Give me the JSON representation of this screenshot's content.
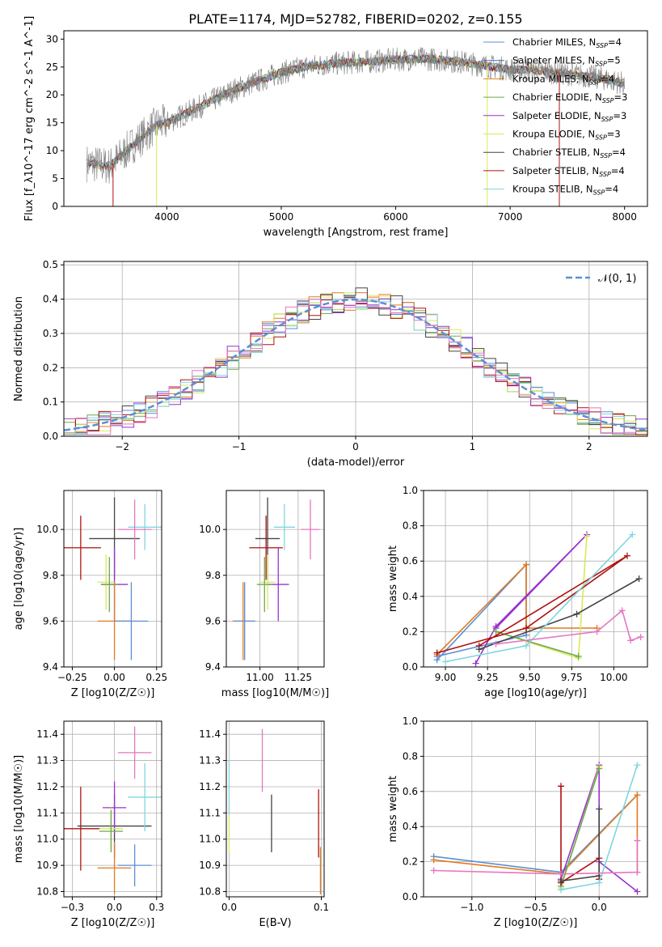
{
  "title": "PLATE=1174, MJD=52782, FIBERID=0202, z=0.155",
  "colors": {
    "chabrier_miles": "#5b8fd6",
    "salpeter_miles": "#3a6fb5",
    "kroupa_miles": "#e07b20",
    "chabrier_elodie": "#6aa84f",
    "salpeter_elodie": "#9933cc",
    "kroupa_elodie": "#d9e85a",
    "chabrier_stelib": "#444444",
    "salpeter_stelib": "#b01010",
    "kroupa_stelib": "#7fd6de",
    "pink": "#e377c2",
    "gauss": "#5b8fd6",
    "data": "#808080"
  },
  "chart_data": [
    {
      "type": "line",
      "name": "spectrum",
      "xlabel": "wavelength [Angstrom, rest frame]",
      "ylabel": "Flux [f_λ10^-17 erg cm^-2 s^-1 A^-1]",
      "xlim": [
        3100,
        8200
      ],
      "ylim": [
        0,
        31.5
      ],
      "xticks": [
        4000,
        5000,
        6000,
        7000,
        8000
      ],
      "yticks": [
        0,
        5,
        10,
        15,
        20,
        25,
        30
      ],
      "legend": [
        {
          "label": "Chabrier MILES, N_SSP=4",
          "color": "chabrier_miles"
        },
        {
          "label": "Salpeter MILES, N_SSP=5",
          "color": "salpeter_miles"
        },
        {
          "label": "Kroupa MILES, N_SSP=4",
          "color": "kroupa_miles"
        },
        {
          "label": "Chabrier ELODIE, N_SSP=3",
          "color": "chabrier_elodie"
        },
        {
          "label": "Salpeter ELODIE, N_SSP=3",
          "color": "salpeter_elodie"
        },
        {
          "label": "Kroupa ELODIE, N_SSP=3",
          "color": "kroupa_elodie"
        },
        {
          "label": "Chabrier STELIB, N_SSP=4",
          "color": "chabrier_stelib"
        },
        {
          "label": "Salpeter STELIB, N_SSP=4",
          "color": "salpeter_stelib"
        },
        {
          "label": "Kroupa STELIB, N_SSP=4",
          "color": "kroupa_stelib"
        }
      ],
      "continuum": [
        [
          3300,
          7.8
        ],
        [
          3500,
          7.2
        ],
        [
          3700,
          11
        ],
        [
          3900,
          14.5
        ],
        [
          4000,
          15
        ],
        [
          4200,
          17
        ],
        [
          4400,
          19
        ],
        [
          4600,
          21
        ],
        [
          4800,
          22.5
        ],
        [
          5000,
          24
        ],
        [
          5200,
          25
        ],
        [
          5400,
          25.5
        ],
        [
          5600,
          25.8
        ],
        [
          5800,
          26
        ],
        [
          6000,
          26.3
        ],
        [
          6200,
          26.5
        ],
        [
          6400,
          26.3
        ],
        [
          6600,
          25.8
        ],
        [
          6800,
          25.2
        ],
        [
          7000,
          24.5
        ],
        [
          7200,
          24.5
        ],
        [
          7400,
          24
        ],
        [
          7600,
          23.5
        ],
        [
          7800,
          23
        ],
        [
          8000,
          22
        ]
      ]
    },
    {
      "type": "line",
      "name": "residuals",
      "xlabel": "(data-model)/error",
      "ylabel": "Normed distribution",
      "xlim": [
        -2.5,
        2.5
      ],
      "ylim": [
        0,
        0.51
      ],
      "xticks": [
        -2,
        -1,
        0,
        1,
        2
      ],
      "yticks": [
        0.0,
        0.1,
        0.2,
        0.3,
        0.4,
        0.5
      ],
      "legend": [
        {
          "label": "𝒩(0, 1)",
          "color": "gauss"
        }
      ]
    },
    {
      "type": "scatter",
      "name": "age-vs-Z",
      "xlabel": "Z [log10(Z/Z☉)]",
      "ylabel": "age [log10(age/yr)]",
      "xlim": [
        -0.3,
        0.28
      ],
      "ylim": [
        9.4,
        10.17
      ],
      "xticks": [
        -0.25,
        0.0,
        0.25
      ],
      "yticks": [
        9.4,
        9.6,
        9.8,
        10.0
      ],
      "points": [
        {
          "x": -0.2,
          "y": 9.92,
          "xerr": 0.12,
          "yerr": 0.14,
          "color": "salpeter_stelib"
        },
        {
          "x": 0.0,
          "y": 9.96,
          "xerr": 0.15,
          "yerr": 0.18,
          "color": "chabrier_stelib"
        },
        {
          "x": 0.18,
          "y": 10.01,
          "xerr": 0.1,
          "yerr": 0.1,
          "color": "kroupa_stelib"
        },
        {
          "x": 0.12,
          "y": 10.0,
          "xerr": 0.1,
          "yerr": 0.13,
          "color": "pink"
        },
        {
          "x": 0.0,
          "y": 9.76,
          "xerr": 0.08,
          "yerr": 0.16,
          "color": "salpeter_elodie"
        },
        {
          "x": -0.05,
          "y": 9.77,
          "xerr": 0.05,
          "yerr": 0.12,
          "color": "kroupa_elodie"
        },
        {
          "x": -0.03,
          "y": 9.76,
          "xerr": 0.05,
          "yerr": 0.12,
          "color": "chabrier_elodie"
        },
        {
          "x": 0.0,
          "y": 9.6,
          "xerr": 0.1,
          "yerr": 0.17,
          "color": "kroupa_miles"
        },
        {
          "x": 0.1,
          "y": 9.6,
          "xerr": 0.1,
          "yerr": 0.17,
          "color": "chabrier_miles"
        }
      ]
    },
    {
      "type": "scatter",
      "name": "age-vs-mass",
      "xlabel": "mass [log10(M/M☉)]",
      "ylabel": "",
      "xlim": [
        10.78,
        11.42
      ],
      "ylim": [
        9.4,
        10.17
      ],
      "xticks": [
        11.0,
        11.25
      ],
      "yticks": [
        9.4,
        9.6,
        9.8,
        10.0
      ],
      "points": [
        {
          "x": 11.04,
          "y": 9.92,
          "xerr": 0.11,
          "yerr": 0.14,
          "color": "salpeter_stelib"
        },
        {
          "x": 11.05,
          "y": 9.96,
          "xerr": 0.08,
          "yerr": 0.18,
          "color": "chabrier_stelib"
        },
        {
          "x": 11.16,
          "y": 10.01,
          "xerr": 0.07,
          "yerr": 0.1,
          "color": "kroupa_stelib"
        },
        {
          "x": 11.33,
          "y": 10.0,
          "xerr": 0.06,
          "yerr": 0.13,
          "color": "pink"
        },
        {
          "x": 11.12,
          "y": 9.76,
          "xerr": 0.07,
          "yerr": 0.16,
          "color": "salpeter_elodie"
        },
        {
          "x": 11.05,
          "y": 9.77,
          "xerr": 0.05,
          "yerr": 0.12,
          "color": "kroupa_elodie"
        },
        {
          "x": 11.03,
          "y": 9.76,
          "xerr": 0.05,
          "yerr": 0.12,
          "color": "chabrier_elodie"
        },
        {
          "x": 10.89,
          "y": 9.6,
          "xerr": 0.07,
          "yerr": 0.17,
          "color": "kroupa_miles"
        },
        {
          "x": 10.9,
          "y": 9.6,
          "xerr": 0.07,
          "yerr": 0.17,
          "color": "chabrier_miles"
        }
      ]
    },
    {
      "type": "line",
      "name": "mass-weight-vs-age",
      "xlabel": "age [log10(age/yr)]",
      "ylabel": "mass weight",
      "xlim": [
        8.87,
        10.2
      ],
      "ylim": [
        0,
        1.0
      ],
      "xticks": [
        9.0,
        9.25,
        9.5,
        9.75,
        10.0
      ],
      "yticks": [
        0.0,
        0.2,
        0.4,
        0.6,
        0.8,
        1.0
      ],
      "series": [
        {
          "color": "chabrier_miles",
          "points": [
            [
              8.95,
              0.04
            ],
            [
              9.48,
              0.58
            ],
            [
              9.48,
              0.18
            ],
            [
              8.95,
              0.06
            ]
          ]
        },
        {
          "color": "kroupa_miles",
          "points": [
            [
              8.95,
              0.07
            ],
            [
              9.48,
              0.58
            ],
            [
              9.48,
              0.22
            ],
            [
              9.9,
              0.22
            ]
          ]
        },
        {
          "color": "salpeter_elodie",
          "points": [
            [
              9.18,
              0.02
            ],
            [
              9.3,
              0.23
            ],
            [
              9.84,
              0.75
            ],
            [
              9.3,
              0.22
            ]
          ]
        },
        {
          "color": "kroupa_elodie",
          "points": [
            [
              9.3,
              0.2
            ],
            [
              9.79,
              0.05
            ],
            [
              9.84,
              0.74
            ]
          ]
        },
        {
          "color": "chabrier_elodie",
          "points": [
            [
              9.3,
              0.2
            ],
            [
              9.79,
              0.06
            ]
          ]
        },
        {
          "color": "salpeter_stelib",
          "points": [
            [
              8.95,
              0.08
            ],
            [
              9.48,
              0.22
            ],
            [
              10.08,
              0.63
            ],
            [
              9.2,
              0.12
            ]
          ]
        },
        {
          "color": "chabrier_stelib",
          "points": [
            [
              9.2,
              0.1
            ],
            [
              9.78,
              0.3
            ],
            [
              10.15,
              0.5
            ]
          ]
        },
        {
          "color": "kroupa_stelib",
          "points": [
            [
              9.0,
              0.03
            ],
            [
              9.48,
              0.12
            ],
            [
              10.11,
              0.75
            ]
          ]
        },
        {
          "color": "pink",
          "points": [
            [
              9.3,
              0.13
            ],
            [
              9.9,
              0.2
            ],
            [
              10.05,
              0.32
            ],
            [
              10.1,
              0.15
            ],
            [
              10.16,
              0.17
            ]
          ]
        }
      ]
    },
    {
      "type": "scatter",
      "name": "mass-vs-Z",
      "xlabel": "Z [log10(Z/Z☉)]",
      "ylabel": "mass [log10(M/M☉)]",
      "xlim": [
        -0.3,
        0.28
      ],
      "ylim": [
        10.78,
        11.45
      ],
      "xticks": [
        -0.25,
        0.0,
        0.25
      ],
      "yticks": [
        10.8,
        10.9,
        11.0,
        11.1,
        11.2,
        11.3,
        11.4
      ],
      "points": [
        {
          "x": -0.2,
          "y": 11.04,
          "xerr": 0.12,
          "yerr": 0.16,
          "color": "salpeter_stelib"
        },
        {
          "x": 0.0,
          "y": 11.05,
          "xerr": 0.22,
          "yerr": 0.12,
          "color": "chabrier_stelib"
        },
        {
          "x": 0.18,
          "y": 11.16,
          "xerr": 0.1,
          "yerr": 0.13,
          "color": "kroupa_stelib"
        },
        {
          "x": 0.12,
          "y": 11.33,
          "xerr": 0.1,
          "yerr": 0.1,
          "color": "pink"
        },
        {
          "x": 0.0,
          "y": 11.12,
          "xerr": 0.07,
          "yerr": 0.1,
          "color": "salpeter_elodie"
        },
        {
          "x": -0.02,
          "y": 11.04,
          "xerr": 0.07,
          "yerr": 0.08,
          "color": "kroupa_elodie"
        },
        {
          "x": -0.02,
          "y": 11.03,
          "xerr": 0.07,
          "yerr": 0.08,
          "color": "chabrier_elodie"
        },
        {
          "x": 0.0,
          "y": 10.89,
          "xerr": 0.1,
          "yerr": 0.1,
          "color": "kroupa_miles"
        },
        {
          "x": 0.12,
          "y": 10.9,
          "xerr": 0.1,
          "yerr": 0.08,
          "color": "chabrier_miles"
        }
      ]
    },
    {
      "type": "scatter",
      "name": "mass-vs-ebv",
      "xlabel": "E(B-V)",
      "ylabel": "",
      "xlim": [
        -0.003,
        0.103
      ],
      "ylim": [
        10.78,
        11.45
      ],
      "xticks": [
        0.0,
        0.1
      ],
      "yticks": [
        10.8,
        10.9,
        11.0,
        11.1,
        11.2,
        11.3,
        11.4
      ],
      "points": [
        {
          "x": 0.0,
          "y": 11.2,
          "yerr": 0.1,
          "color": "kroupa_stelib"
        },
        {
          "x": 0.0,
          "y": 11.02,
          "yerr": 0.07,
          "color": "kroupa_elodie"
        },
        {
          "x": 0.036,
          "y": 11.3,
          "yerr": 0.12,
          "color": "pink"
        },
        {
          "x": 0.046,
          "y": 11.06,
          "yerr": 0.11,
          "color": "chabrier_stelib"
        },
        {
          "x": 0.097,
          "y": 11.06,
          "yerr": 0.13,
          "color": "salpeter_stelib"
        },
        {
          "x": 0.099,
          "y": 10.88,
          "yerr": 0.09,
          "color": "kroupa_miles"
        }
      ]
    },
    {
      "type": "line",
      "name": "mass-weight-vs-Z",
      "xlabel": "Z [log10(Z/Z☉)]",
      "ylabel": "mass weight",
      "xlim": [
        -1.38,
        0.38
      ],
      "ylim": [
        0,
        1.0
      ],
      "xticks": [
        -1.0,
        -0.5,
        0.0
      ],
      "yticks": [
        0.0,
        0.2,
        0.4,
        0.6,
        0.8,
        1.0
      ],
      "series": [
        {
          "color": "chabrier_miles",
          "points": [
            [
              -1.3,
              0.23
            ],
            [
              -0.3,
              0.14
            ],
            [
              0.3,
              0.58
            ]
          ]
        },
        {
          "color": "kroupa_miles",
          "points": [
            [
              -1.3,
              0.21
            ],
            [
              -0.3,
              0.13
            ],
            [
              0.3,
              0.58
            ],
            [
              0.3,
              0.14
            ]
          ]
        },
        {
          "color": "salpeter_elodie",
          "points": [
            [
              -0.3,
              0.1
            ],
            [
              0.0,
              0.75
            ],
            [
              0.0,
              0.2
            ],
            [
              0.3,
              0.03
            ]
          ]
        },
        {
          "color": "kroupa_elodie",
          "points": [
            [
              -0.3,
              0.05
            ],
            [
              0.0,
              0.74
            ]
          ]
        },
        {
          "color": "chabrier_elodie",
          "points": [
            [
              -0.3,
              0.06
            ],
            [
              0.0,
              0.73
            ]
          ]
        },
        {
          "color": "salpeter_stelib",
          "points": [
            [
              -0.3,
              0.63
            ],
            [
              -0.3,
              0.08
            ],
            [
              0.0,
              0.22
            ],
            [
              0.0,
              0.1
            ]
          ]
        },
        {
          "color": "chabrier_stelib",
          "points": [
            [
              -0.3,
              0.09
            ],
            [
              0.0,
              0.12
            ],
            [
              0.0,
              0.5
            ]
          ]
        },
        {
          "color": "kroupa_stelib",
          "points": [
            [
              -0.3,
              0.04
            ],
            [
              0.0,
              0.08
            ],
            [
              0.3,
              0.75
            ]
          ]
        },
        {
          "color": "pink",
          "points": [
            [
              -1.3,
              0.15
            ],
            [
              -0.3,
              0.13
            ],
            [
              0.3,
              0.14
            ],
            [
              0.3,
              0.32
            ]
          ]
        }
      ]
    }
  ]
}
